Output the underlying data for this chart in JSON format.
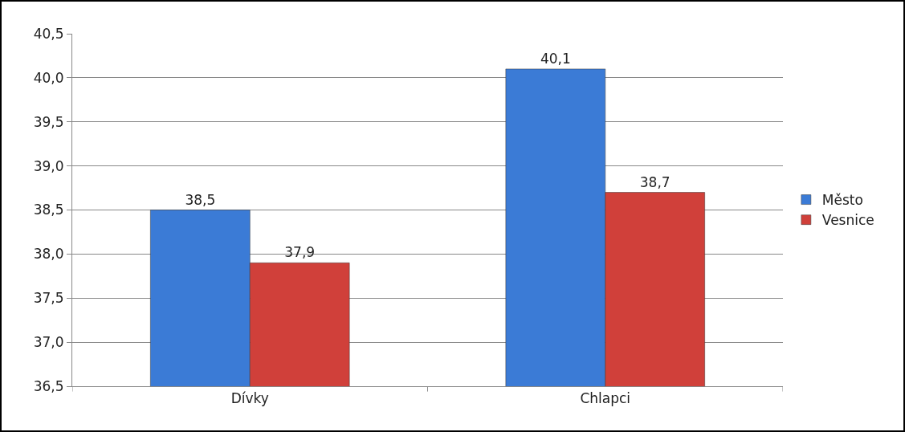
{
  "chart_data": {
    "type": "bar",
    "categories": [
      "Dívky",
      "Chlapci"
    ],
    "series": [
      {
        "name": "Město",
        "color": "#3b7bd6",
        "values": [
          38.5,
          40.1
        ],
        "value_labels": [
          "38,5",
          "40,1"
        ]
      },
      {
        "name": "Vesnice",
        "color": "#d0403a",
        "values": [
          37.9,
          38.7
        ],
        "value_labels": [
          "37,9",
          "38,7"
        ]
      }
    ],
    "ylim": [
      36.5,
      40.5
    ],
    "yticks": [
      {
        "value": 36.5,
        "label": "36,5"
      },
      {
        "value": 37,
        "label": "37,0"
      },
      {
        "value": 37.5,
        "label": "37,5"
      },
      {
        "value": 38,
        "label": "38,0"
      },
      {
        "value": 38.5,
        "label": "38,5"
      },
      {
        "value": 39,
        "label": "39,0"
      },
      {
        "value": 39.5,
        "label": "39,5"
      },
      {
        "value": 40,
        "label": "40,0"
      },
      {
        "value": 40.5,
        "label": "40,5"
      }
    ],
    "grid": "y",
    "legend": "right"
  }
}
